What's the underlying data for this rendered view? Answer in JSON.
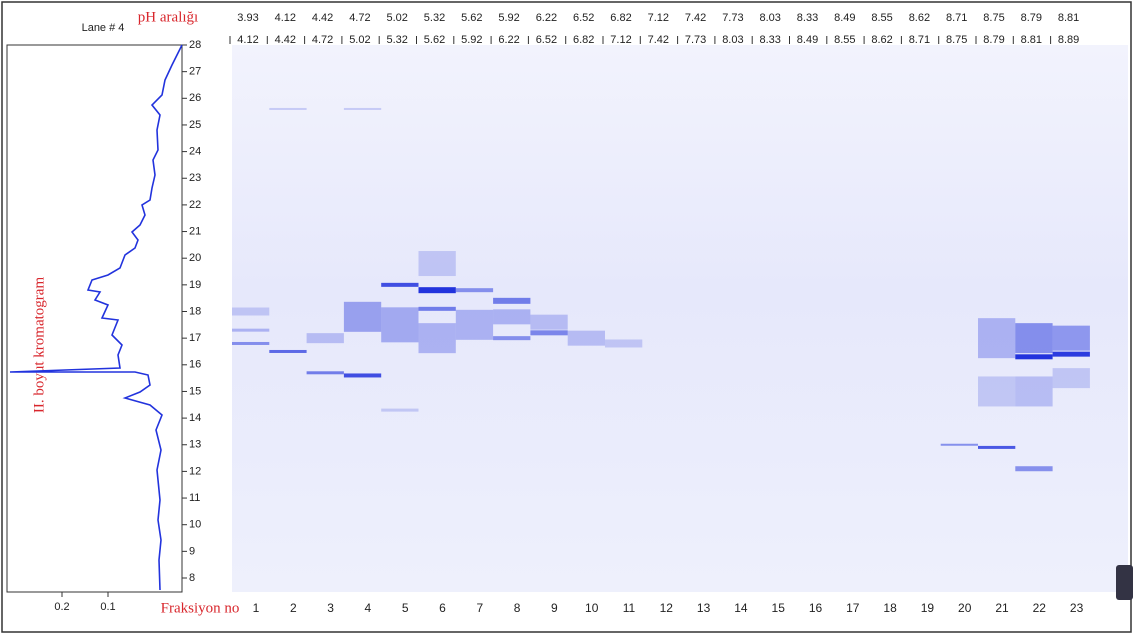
{
  "header": {
    "ph_label": "pH aralığı",
    "ph_from": [
      3.93,
      4.12,
      4.42,
      4.72,
      5.02,
      5.32,
      5.62,
      5.92,
      6.22,
      6.52,
      6.82,
      7.12,
      7.42,
      7.73,
      8.03,
      8.33,
      8.49,
      8.55,
      8.62,
      8.71,
      8.75,
      8.79,
      8.81
    ],
    "ph_to": [
      4.12,
      4.42,
      4.72,
      5.02,
      5.32,
      5.62,
      5.92,
      6.22,
      6.52,
      6.82,
      7.12,
      7.42,
      7.73,
      8.03,
      8.33,
      8.49,
      8.55,
      8.62,
      8.71,
      8.75,
      8.79,
      8.81,
      8.89
    ]
  },
  "lane": {
    "title": "Lane # 4",
    "axis_label": "II. boyut kromatogram",
    "y_ticks": [
      8,
      9,
      10,
      11,
      12,
      13,
      14,
      15,
      16,
      17,
      18,
      19,
      20,
      21,
      22,
      23,
      24,
      25,
      26,
      27,
      28
    ],
    "x_ticks": [
      0.2,
      0.1
    ]
  },
  "fractions": {
    "label": "Fraksiyon no",
    "numbers": [
      1,
      2,
      3,
      4,
      5,
      6,
      7,
      8,
      9,
      10,
      11,
      12,
      13,
      14,
      15,
      16,
      17,
      18,
      19,
      20,
      21,
      22,
      23
    ]
  }
}
